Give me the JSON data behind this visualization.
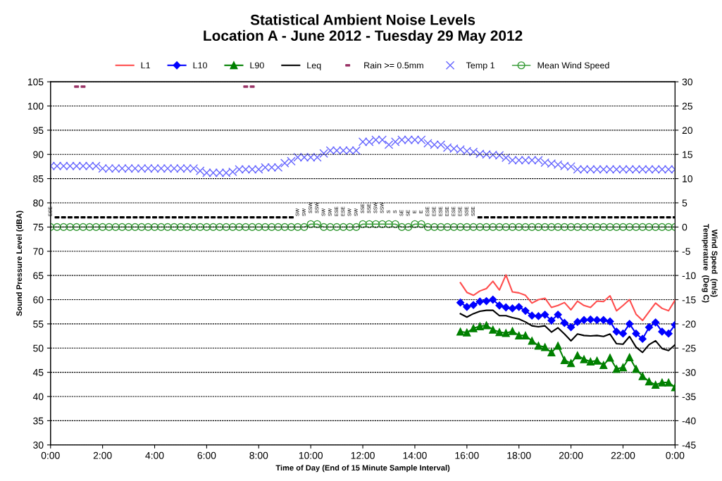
{
  "chart_data": {
    "type": "line",
    "title": "Statistical Ambient Noise Levels\nLocation A - June 2012 - Tuesday 29 May 2012",
    "xlabel": "Time of Day (End of 15 Minute Sample Interval)",
    "ylabel": "Sound Pressure Level (dBA)",
    "y2label": "Wind Speed  (m/s)\nTemperature  (Deg C)",
    "xlim": [
      0,
      24
    ],
    "xticks": [
      {
        "value": 0,
        "label": "0:00"
      },
      {
        "value": 2,
        "label": "2:00"
      },
      {
        "value": 4,
        "label": "4:00"
      },
      {
        "value": 6,
        "label": "6:00"
      },
      {
        "value": 8,
        "label": "8:00"
      },
      {
        "value": 10,
        "label": "10:00"
      },
      {
        "value": 12,
        "label": "12:00"
      },
      {
        "value": 14,
        "label": "14:00"
      },
      {
        "value": 16,
        "label": "16:00"
      },
      {
        "value": 18,
        "label": "18:00"
      },
      {
        "value": 20,
        "label": "20:00"
      },
      {
        "value": 22,
        "label": "22:00"
      },
      {
        "value": 24,
        "label": "0:00"
      }
    ],
    "ylim": [
      30,
      105
    ],
    "yticks": [
      30,
      35,
      40,
      45,
      50,
      55,
      60,
      65,
      70,
      75,
      80,
      85,
      90,
      95,
      100,
      105
    ],
    "y2lim": [
      -45,
      30
    ],
    "y2ticks": [
      {
        "value": -45,
        "label": "-45"
      },
      {
        "value": -40,
        "label": "-40"
      },
      {
        "value": -35,
        "label": "-35"
      },
      {
        "value": -30,
        "label": "-30"
      },
      {
        "value": -25,
        "label": "-25"
      },
      {
        "value": -20,
        "label": "-20"
      },
      {
        "value": -15,
        "label": "-15"
      },
      {
        "value": -10,
        "label": "-10"
      },
      {
        "value": -5,
        "label": "-5"
      },
      0,
      5,
      10,
      15,
      20,
      25,
      30
    ],
    "grid": "y",
    "legend": "top",
    "series": [
      {
        "name": "L1",
        "type": "line",
        "color": "#ff4d4d",
        "marker": "none",
        "x": [
          15.75,
          16,
          16.25,
          16.5,
          16.75,
          17,
          17.25,
          17.5,
          17.75,
          18,
          18.25,
          18.5,
          18.75,
          19,
          19.25,
          19.5,
          19.75,
          20,
          20.25,
          20.5,
          20.75,
          21,
          21.25,
          21.5,
          21.75,
          22,
          22.25,
          22.5,
          22.75,
          23,
          23.25,
          23.5,
          23.75,
          24
        ],
        "values": [
          63.5,
          61.5,
          60.9,
          61.8,
          62.3,
          63.8,
          62.0,
          65.1,
          61.6,
          61.4,
          60.9,
          59.3,
          60.0,
          60.3,
          58.4,
          58.8,
          59.4,
          57.9,
          59.7,
          58.8,
          58.4,
          59.7,
          59.6,
          60.8,
          57.7,
          58.8,
          60.0,
          57.0,
          55.7,
          57.5,
          59.3,
          58.2,
          57.7,
          59.9
        ]
      },
      {
        "name": "L10",
        "type": "line",
        "color": "#0000ff",
        "marker": "diamond",
        "x": [
          15.75,
          16,
          16.25,
          16.5,
          16.75,
          17,
          17.25,
          17.5,
          17.75,
          18,
          18.25,
          18.5,
          18.75,
          19,
          19.25,
          19.5,
          19.75,
          20,
          20.25,
          20.5,
          20.75,
          21,
          21.25,
          21.5,
          21.75,
          22,
          22.25,
          22.5,
          22.75,
          23,
          23.25,
          23.5,
          23.75,
          24
        ],
        "values": [
          59.4,
          58.5,
          58.9,
          59.6,
          59.7,
          60.0,
          58.8,
          58.4,
          58.2,
          58.5,
          57.7,
          56.7,
          56.6,
          56.9,
          55.7,
          56.9,
          55.2,
          54.3,
          55.4,
          55.8,
          55.9,
          55.8,
          55.8,
          55.5,
          53.4,
          53.0,
          55.0,
          53.0,
          51.9,
          54.3,
          55.3,
          53.4,
          53.0,
          54.8
        ]
      },
      {
        "name": "L90",
        "type": "line",
        "color": "#008000",
        "marker": "triangle",
        "x": [
          15.75,
          16,
          16.25,
          16.5,
          16.75,
          17,
          17.25,
          17.5,
          17.75,
          18,
          18.25,
          18.5,
          18.75,
          19,
          19.25,
          19.5,
          19.75,
          20,
          20.25,
          20.5,
          20.75,
          21,
          21.25,
          21.5,
          21.75,
          22,
          22.25,
          22.5,
          22.75,
          23,
          23.25,
          23.5,
          23.75,
          24
        ],
        "values": [
          53.4,
          53.2,
          54.1,
          54.5,
          54.7,
          53.8,
          53.3,
          53.1,
          53.5,
          52.6,
          52.6,
          51.5,
          50.5,
          50.2,
          49.1,
          50.5,
          47.5,
          46.9,
          48.5,
          47.7,
          47.2,
          47.4,
          46.5,
          48.0,
          45.7,
          46.0,
          48.1,
          45.7,
          44.2,
          43.1,
          42.4,
          42.9,
          42.9,
          41.9
        ]
      },
      {
        "name": "Leq",
        "type": "line",
        "color": "#000000",
        "marker": "none",
        "x": [
          15.75,
          16,
          16.25,
          16.5,
          16.75,
          17,
          17.25,
          17.5,
          17.75,
          18,
          18.25,
          18.5,
          18.75,
          19,
          19.25,
          19.5,
          19.75,
          20,
          20.25,
          20.5,
          20.75,
          21,
          21.25,
          21.5,
          21.75,
          22,
          22.25,
          22.5,
          22.75,
          23,
          23.25,
          23.5,
          23.75,
          24
        ],
        "values": [
          57.1,
          56.4,
          57.1,
          57.6,
          57.8,
          57.8,
          56.7,
          56.7,
          56.3,
          56.0,
          55.4,
          54.6,
          54.4,
          54.6,
          53.3,
          54.2,
          52.9,
          51.5,
          52.9,
          52.6,
          52.5,
          52.6,
          52.4,
          52.9,
          50.9,
          50.8,
          52.4,
          50.2,
          49.1,
          50.7,
          51.5,
          49.9,
          49.5,
          50.7
        ]
      },
      {
        "name": "Rain >= 0.5mm",
        "type": "scatter",
        "color": "#993366",
        "marker": "square",
        "x": [
          1,
          1.25,
          7.5,
          7.75
        ],
        "values": [
          104,
          104,
          104,
          104
        ]
      },
      {
        "name": "Temp 1",
        "type": "scatter",
        "color": "#6666ff",
        "marker": "cross",
        "axis": "y2",
        "x": [
          0,
          0.25,
          0.5,
          0.75,
          1,
          1.25,
          1.5,
          1.75,
          2,
          2.25,
          2.5,
          2.75,
          3,
          3.25,
          3.5,
          3.75,
          4,
          4.25,
          4.5,
          4.75,
          5,
          5.25,
          5.5,
          5.75,
          6,
          6.25,
          6.5,
          6.75,
          7,
          7.25,
          7.5,
          7.75,
          8,
          8.25,
          8.5,
          8.75,
          9,
          9.25,
          9.5,
          9.75,
          10,
          10.25,
          10.5,
          10.75,
          11,
          11.25,
          11.5,
          11.75,
          12,
          12.25,
          12.5,
          12.75,
          13,
          13.25,
          13.5,
          13.75,
          14,
          14.25,
          14.5,
          14.75,
          15,
          15.25,
          15.5,
          15.75,
          16,
          16.25,
          16.5,
          16.75,
          17,
          17.25,
          17.5,
          17.75,
          18,
          18.25,
          18.5,
          18.75,
          19,
          19.25,
          19.5,
          19.75,
          20,
          20.25,
          20.5,
          20.75,
          21,
          21.25,
          21.5,
          21.75,
          22,
          22.25,
          22.5,
          22.75,
          23,
          23.25,
          23.5,
          23.75,
          24
        ],
        "values": [
          12.6,
          12.6,
          12.6,
          12.6,
          12.6,
          12.6,
          12.6,
          12.6,
          12.1,
          12.1,
          12.1,
          12.1,
          12.1,
          12.1,
          12.1,
          12.1,
          12.1,
          12.1,
          12.1,
          12.1,
          12.1,
          12.1,
          12.1,
          11.6,
          11.2,
          11.2,
          11.2,
          11.2,
          11.4,
          11.9,
          11.9,
          11.9,
          11.9,
          12.3,
          12.3,
          12.3,
          13.2,
          13.6,
          14.4,
          14.4,
          14.4,
          14.4,
          15.2,
          15.8,
          15.8,
          15.8,
          15.8,
          15.8,
          17.6,
          17.6,
          18,
          18,
          17,
          17.6,
          18,
          18,
          18,
          18,
          17.3,
          17,
          17,
          16.4,
          16.2,
          16,
          15.7,
          15.5,
          15.1,
          15,
          14.9,
          14.8,
          14.3,
          13.8,
          13.8,
          13.8,
          13.8,
          13.8,
          13.3,
          13.1,
          12.9,
          12.6,
          12.5,
          11.9,
          11.9,
          11.9,
          11.9,
          11.9,
          11.9,
          11.9,
          11.9,
          11.9,
          11.9,
          11.9,
          11.9,
          11.9,
          11.9,
          11.9,
          11.9
        ]
      },
      {
        "name": "Mean Wind Speed",
        "type": "line",
        "color": "#339933",
        "marker": "circle",
        "axis": "y2",
        "x": [
          0,
          0.25,
          0.5,
          0.75,
          1,
          1.25,
          1.5,
          1.75,
          2,
          2.25,
          2.5,
          2.75,
          3,
          3.25,
          3.5,
          3.75,
          4,
          4.25,
          4.5,
          4.75,
          5,
          5.25,
          5.5,
          5.75,
          6,
          6.25,
          6.5,
          6.75,
          7,
          7.25,
          7.5,
          7.75,
          8,
          8.25,
          8.5,
          8.75,
          9,
          9.25,
          9.5,
          9.75,
          10,
          10.25,
          10.5,
          10.75,
          11,
          11.25,
          11.5,
          11.75,
          12,
          12.25,
          12.5,
          12.75,
          13,
          13.25,
          13.5,
          13.75,
          14,
          14.25,
          14.5,
          14.75,
          15,
          15.25,
          15.5,
          15.75,
          16,
          16.25,
          16.5,
          16.75,
          17,
          17.25,
          17.5,
          17.75,
          18,
          18.25,
          18.5,
          18.75,
          19,
          19.25,
          19.5,
          19.75,
          20,
          20.25,
          20.5,
          20.75,
          21,
          21.25,
          21.5,
          21.75,
          22,
          22.25,
          22.5,
          22.75,
          23,
          23.25,
          23.5,
          23.75,
          24
        ],
        "values": [
          0,
          0,
          0,
          0,
          0,
          0,
          0,
          0,
          0,
          0,
          0,
          0,
          0,
          0,
          0,
          0,
          0,
          0,
          0,
          0,
          0,
          0,
          0,
          0,
          0,
          0,
          0,
          0,
          0,
          0,
          0,
          0,
          0,
          0,
          0,
          0,
          0,
          0,
          0,
          0,
          0.6,
          0.6,
          0,
          0,
          0,
          0,
          0,
          0,
          0.6,
          0.6,
          0.6,
          0.6,
          0.6,
          0.6,
          0,
          0,
          0.6,
          0.6,
          0,
          0,
          0,
          0,
          0,
          0,
          0,
          0,
          0,
          0,
          0,
          0,
          0,
          0,
          0,
          0,
          0,
          0,
          0,
          0,
          0,
          0,
          0,
          0,
          0,
          0,
          0,
          0,
          0,
          0,
          0,
          0,
          0,
          0,
          0,
          0,
          0,
          0,
          0
        ],
        "value_labels": [
          "ESE",
          null,
          null,
          null,
          null,
          null,
          null,
          null,
          null,
          null,
          null,
          null,
          null,
          null,
          null,
          null,
          null,
          null,
          null,
          null,
          null,
          null,
          null,
          null,
          null,
          null,
          null,
          null,
          null,
          null,
          null,
          null,
          null,
          null,
          null,
          null,
          null,
          null,
          "SW",
          "SW",
          "SSW",
          "SSW",
          "SW",
          "SW",
          "ESE",
          "ESE",
          "SW",
          "SW",
          "SSE",
          "SSE",
          "SSW",
          "SSW",
          "S",
          "S",
          "SE",
          "SE",
          "E",
          "E",
          "ESE",
          "ESE",
          "ESE",
          "ESE",
          "ESE",
          "ESE",
          "SSE",
          "SSE",
          null,
          null,
          null,
          null,
          null,
          null,
          null,
          null,
          null,
          null,
          null,
          null,
          null,
          null,
          null,
          null,
          null,
          null,
          null,
          null,
          null,
          null,
          null,
          null,
          null,
          null,
          null,
          null,
          null,
          null,
          null
        ]
      },
      {
        "type": "scatter",
        "color": "#000000",
        "marker": "square",
        "x": [
          0.25,
          0.5,
          0.75,
          1,
          1.25,
          1.5,
          1.75,
          2,
          2.25,
          2.5,
          2.75,
          3,
          3.25,
          3.5,
          3.75,
          4,
          4.25,
          4.5,
          4.75,
          5,
          5.25,
          5.5,
          5.75,
          6,
          6.25,
          6.5,
          6.75,
          7,
          7.25,
          7.5,
          7.75,
          8,
          8.25,
          8.5,
          8.75,
          9,
          9.25,
          16.5,
          16.75,
          17,
          17.25,
          17.5,
          17.75,
          18,
          18.25,
          18.5,
          18.75,
          19,
          19.25,
          19.5,
          19.75,
          20,
          20.25,
          20.5,
          20.75,
          21,
          21.25,
          21.5,
          21.75,
          22,
          22.25,
          22.5,
          22.75,
          23,
          23.25,
          23.5,
          23.75,
          24
        ],
        "values": [
          77,
          77,
          77,
          77,
          77,
          77,
          77,
          77,
          77,
          77,
          77,
          77,
          77,
          77,
          77,
          77,
          77,
          77,
          77,
          77,
          77,
          77,
          77,
          77,
          77,
          77,
          77,
          77,
          77,
          77,
          77,
          77,
          77,
          77,
          77,
          77,
          77,
          77,
          77,
          77,
          77,
          77,
          77,
          77,
          77,
          77,
          77,
          77,
          77,
          77,
          77,
          77,
          77,
          77,
          77,
          77,
          77,
          77,
          77,
          77,
          77,
          77,
          77,
          77,
          77,
          77,
          77,
          77
        ]
      }
    ]
  }
}
